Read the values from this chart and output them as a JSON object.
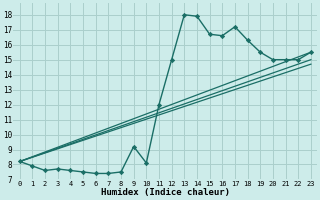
{
  "bg_color": "#cdecea",
  "grid_color": "#aacfcc",
  "line_color": "#1a6e66",
  "xlabel": "Humidex (Indice chaleur)",
  "ylabel_ticks": [
    7,
    8,
    9,
    10,
    11,
    12,
    13,
    14,
    15,
    16,
    17,
    18
  ],
  "xlabel_ticks": [
    0,
    1,
    2,
    3,
    4,
    5,
    6,
    7,
    8,
    9,
    10,
    11,
    12,
    13,
    14,
    15,
    16,
    17,
    18,
    19,
    20,
    21,
    22,
    23
  ],
  "xlim": [
    -0.5,
    23.5
  ],
  "ylim": [
    7.0,
    18.8
  ],
  "main_curve": {
    "x": [
      0,
      1,
      2,
      3,
      4,
      5,
      6,
      7,
      8,
      9,
      10,
      11,
      12,
      13,
      14,
      15,
      16,
      17,
      18,
      19,
      20,
      21,
      22,
      23
    ],
    "y": [
      8.2,
      7.9,
      7.6,
      7.7,
      7.6,
      7.5,
      7.4,
      7.4,
      7.5,
      9.2,
      8.1,
      12.0,
      15.0,
      18.0,
      17.9,
      16.7,
      16.6,
      17.2,
      16.3,
      15.5,
      15.0,
      15.0,
      15.0,
      15.5
    ]
  },
  "straight_lines": [
    {
      "x": [
        0,
        23
      ],
      "y": [
        8.2,
        15.5
      ]
    },
    {
      "x": [
        0,
        23
      ],
      "y": [
        8.2,
        15.0
      ]
    },
    {
      "x": [
        0,
        23
      ],
      "y": [
        8.2,
        14.7
      ]
    }
  ]
}
